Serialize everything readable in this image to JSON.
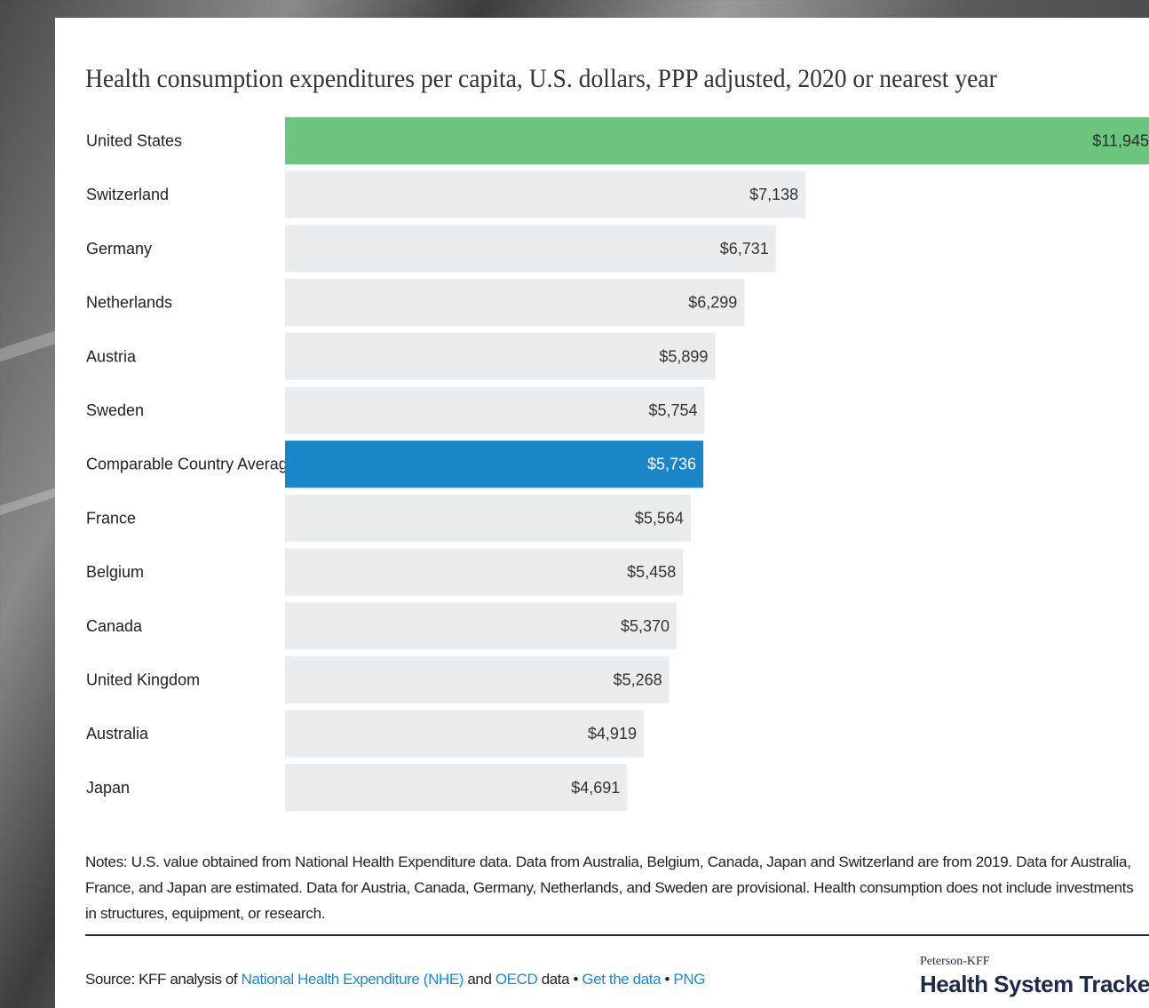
{
  "chart_data": {
    "type": "bar",
    "orientation": "horizontal",
    "title": "Health consumption expenditures per capita, U.S. dollars, PPP adjusted, 2020 or nearest year",
    "categories": [
      "United States",
      "Switzerland",
      "Germany",
      "Netherlands",
      "Austria",
      "Sweden",
      "Comparable Country Average",
      "France",
      "Belgium",
      "Canada",
      "United Kingdom",
      "Australia",
      "Japan"
    ],
    "values": [
      11945,
      7138,
      6731,
      6299,
      5899,
      5754,
      5736,
      5564,
      5458,
      5370,
      5268,
      4919,
      4691
    ],
    "value_labels": [
      "$11,945",
      "$7,138",
      "$6,731",
      "$6,299",
      "$5,899",
      "$5,754",
      "$5,736",
      "$5,564",
      "$5,458",
      "$5,370",
      "$5,268",
      "$4,919",
      "$4,691"
    ],
    "xlim": [
      0,
      11945
    ],
    "grid": false,
    "highlight": {
      "United States": "#6cc680",
      "Comparable Country Average": "#1a86c8"
    },
    "bar_track_color": "#e9edf0"
  },
  "notes": "Notes: U.S. value obtained from National Health Expenditure data. Data from Australia, Belgium, Canada, Japan and Switzerland are from 2019. Data for Australia, France, and Japan are estimated. Data for Austria, Canada, Germany, Netherlands, and Sweden are provisional. Health consumption does not include investments in structures, equipment, or research.",
  "source": {
    "prefix": "Source: KFF analysis of ",
    "link_nhe": "National Health Expenditure (NHE)",
    "and": " and ",
    "link_oecd": "OECD",
    "data_word": " data • ",
    "link_get_data": "Get the data",
    "bullet": " • ",
    "link_png": "PNG"
  },
  "brand": {
    "small": "Peterson-KFF",
    "big": "Health System Tracker"
  }
}
